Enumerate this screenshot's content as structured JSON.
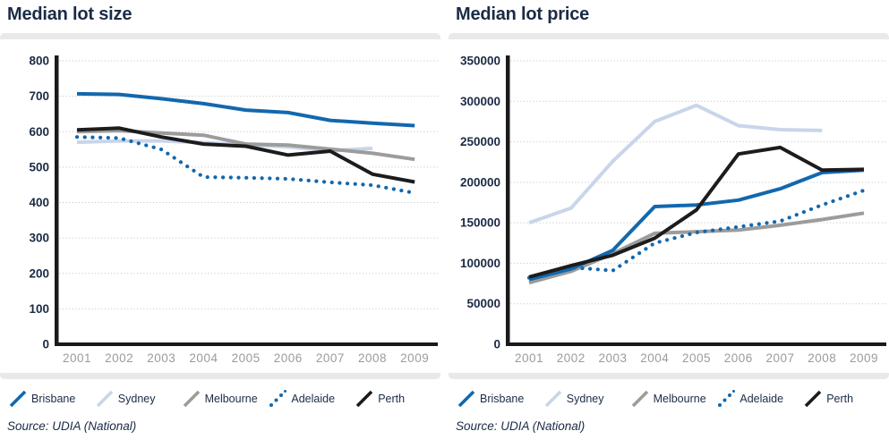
{
  "colors": {
    "brisbane_blue": "#1268ae",
    "sydney_light_blue": "#c9d5ea",
    "melbourne_gray": "#9c9c9c",
    "adelaide_blue": "#1268ae",
    "perth_black": "#1c1c1c",
    "tick_navy": "#1b2b45",
    "year_gray": "#9b9b9b"
  },
  "chart_data": [
    {
      "type": "line",
      "title": "Median lot size",
      "source": "Source: UDIA (National)",
      "categories": [
        "2001",
        "2002",
        "2003",
        "2004",
        "2005",
        "2006",
        "2007",
        "2008",
        "2009"
      ],
      "ylim": [
        0,
        800
      ],
      "grid": "dotted-horizontal",
      "legend_position": "bottom",
      "yticks": [
        {
          "value": 0,
          "label": "0"
        },
        {
          "value": 100,
          "label": "100"
        },
        {
          "value": 200,
          "label": "200"
        },
        {
          "value": 300,
          "label": "300"
        },
        {
          "value": 400,
          "label": "400"
        },
        {
          "value": 500,
          "label": "500"
        },
        {
          "value": 600,
          "label": "600"
        },
        {
          "value": 700,
          "label": "700"
        },
        {
          "value": 800,
          "label": "800"
        }
      ],
      "series": [
        {
          "name": "Brisbane",
          "color": "#1268ae",
          "style": "solid",
          "z": 4,
          "values": [
            707,
            705,
            693,
            679,
            661,
            654,
            632,
            624,
            617
          ]
        },
        {
          "name": "Sydney",
          "color": "#c9d5ea",
          "style": "solid",
          "z": 1,
          "values": [
            570,
            574,
            574,
            569,
            563,
            557,
            546,
            553,
            null
          ]
        },
        {
          "name": "Melbourne",
          "color": "#9c9c9c",
          "style": "solid",
          "z": 2,
          "values": [
            600,
            603,
            596,
            590,
            565,
            562,
            551,
            539,
            522
          ]
        },
        {
          "name": "Adelaide",
          "color": "#1268ae",
          "style": "dotted",
          "z": 3,
          "values": [
            585,
            582,
            550,
            472,
            470,
            467,
            457,
            449,
            427
          ]
        },
        {
          "name": "Perth",
          "color": "#1c1c1c",
          "style": "solid",
          "z": 5,
          "values": [
            605,
            610,
            585,
            565,
            559,
            534,
            545,
            480,
            458
          ]
        }
      ]
    },
    {
      "type": "line",
      "title": "Median lot price",
      "source": "Source: UDIA (National)",
      "categories": [
        "2001",
        "2002",
        "2003",
        "2004",
        "2005",
        "2006",
        "2007",
        "2008",
        "2009"
      ],
      "ylim": [
        0,
        350000
      ],
      "grid": "dotted-horizontal",
      "legend_position": "bottom",
      "yticks": [
        {
          "value": 0,
          "label": "0"
        },
        {
          "value": 50000,
          "label": "50000"
        },
        {
          "value": 100000,
          "label": "100000"
        },
        {
          "value": 150000,
          "label": "150000"
        },
        {
          "value": 200000,
          "label": "200000"
        },
        {
          "value": 250000,
          "label": "250000"
        },
        {
          "value": 300000,
          "label": "300000"
        },
        {
          "value": 350000,
          "label": "350000"
        }
      ],
      "series": [
        {
          "name": "Brisbane",
          "color": "#1268ae",
          "style": "solid",
          "z": 4,
          "values": [
            80000,
            93000,
            116000,
            170000,
            172000,
            178000,
            192000,
            212000,
            215000
          ]
        },
        {
          "name": "Sydney",
          "color": "#c9d5ea",
          "style": "solid",
          "z": 1,
          "values": [
            150000,
            168000,
            226000,
            275000,
            295000,
            270000,
            265000,
            264000,
            null
          ]
        },
        {
          "name": "Melbourne",
          "color": "#9c9c9c",
          "style": "solid",
          "z": 2,
          "values": [
            76000,
            90000,
            112000,
            137000,
            139000,
            141000,
            147000,
            154000,
            162000
          ]
        },
        {
          "name": "Adelaide",
          "color": "#1268ae",
          "style": "dotted",
          "z": 3,
          "values": [
            82000,
            95000,
            91000,
            125000,
            138000,
            145000,
            152000,
            172000,
            190000
          ]
        },
        {
          "name": "Perth",
          "color": "#1c1c1c",
          "style": "solid",
          "z": 5,
          "values": [
            83000,
            97000,
            110000,
            131000,
            166000,
            235000,
            243000,
            215000,
            216000
          ]
        }
      ]
    }
  ]
}
